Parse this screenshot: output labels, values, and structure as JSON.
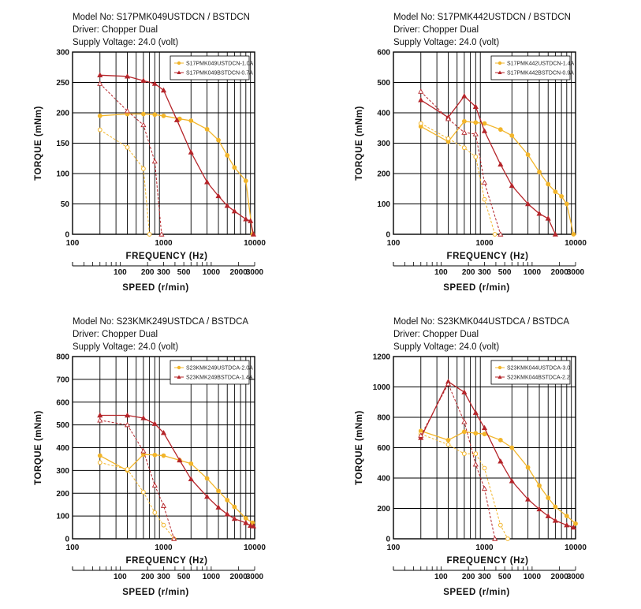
{
  "colors": {
    "yellow": "#f2b52a",
    "red": "#b5252a"
  },
  "chart_data": [
    {
      "type": "line",
      "model": "Model No: S17PMK049USTDCN / BSTDCN",
      "driver": "Driver: Chopper Dual",
      "voltage": "Supply Voltage: 24.0 (volt)",
      "xlabel": "FREQUENCY (Hz)",
      "x2label": "SPEED (r/min)",
      "ylabel": "TORQUE (mNm)",
      "x_scale": "log",
      "xlim": [
        100,
        10000
      ],
      "ylim": [
        0,
        300
      ],
      "yticks": [
        0,
        50,
        100,
        150,
        200,
        250,
        300
      ],
      "xticks": [
        100,
        1000,
        10000
      ],
      "speed_ticks": [
        100,
        200,
        300,
        500,
        1000,
        2000,
        3000
      ],
      "legend_position": "top-right",
      "series": [
        {
          "name": "S17PMK049USTDCN-1.0A",
          "color": "#f2b52a",
          "marker": "circle",
          "x": [
            200,
            400,
            600,
            800,
            1000,
            1500,
            2000,
            3000,
            4000,
            5000,
            6000,
            8000,
            9500
          ],
          "y": [
            195,
            198,
            198,
            197,
            195,
            190,
            187,
            173,
            155,
            130,
            110,
            88,
            0
          ]
        },
        {
          "name": "S17PMK049USTDCN-1.0A (pull-in)",
          "color": "#f2b52a",
          "marker": "circle",
          "dashed": true,
          "x": [
            200,
            400,
            600,
            700
          ],
          "y": [
            172,
            143,
            108,
            0
          ]
        },
        {
          "name": "S17PMK049BSTDCN-0.7A",
          "color": "#b5252a",
          "marker": "triangle",
          "x": [
            200,
            400,
            600,
            800,
            1000,
            1400,
            2000,
            3000,
            4000,
            5000,
            6000,
            8000,
            9000,
            9700
          ],
          "y": [
            262,
            260,
            253,
            248,
            237,
            188,
            135,
            86,
            63,
            47,
            38,
            25,
            22,
            0
          ]
        },
        {
          "name": "S17PMK049BSTDCN-0.7A (pull-in)",
          "color": "#b5252a",
          "marker": "triangle",
          "dashed": true,
          "x": [
            200,
            400,
            600,
            800,
            950
          ],
          "y": [
            248,
            203,
            180,
            120,
            0
          ]
        }
      ]
    },
    {
      "type": "line",
      "model": "Model No: S17PMK442USTDCN / BSTDCN",
      "driver": "Driver: Chopper Dual",
      "voltage": "Supply Voltage: 24.0 (volt)",
      "xlabel": "FREQUENCY (Hz)",
      "x2label": "SPEED (r/min)",
      "ylabel": "TORQUE (mNm)",
      "x_scale": "log",
      "xlim": [
        100,
        10000
      ],
      "ylim": [
        0,
        600
      ],
      "yticks": [
        0,
        100,
        200,
        300,
        400,
        500,
        600
      ],
      "xticks": [
        100,
        1000,
        10000
      ],
      "speed_ticks": [
        100,
        200,
        300,
        500,
        1000,
        2000,
        3000
      ],
      "legend_position": "top-right",
      "series": [
        {
          "name": "S17PMK442USTDCN-1.4A",
          "color": "#f2b52a",
          "marker": "circle",
          "x": [
            200,
            400,
            600,
            800,
            1000,
            1500,
            2000,
            3000,
            4000,
            5000,
            6000,
            7000,
            8000,
            9500
          ],
          "y": [
            355,
            305,
            372,
            368,
            365,
            345,
            325,
            262,
            205,
            165,
            140,
            125,
            100,
            0
          ]
        },
        {
          "name": "S17PMK442USTDCN-1.4A (pull-in)",
          "color": "#f2b52a",
          "marker": "circle",
          "dashed": true,
          "x": [
            200,
            400,
            600,
            800,
            1000,
            1300
          ],
          "y": [
            365,
            315,
            285,
            255,
            115,
            0
          ]
        },
        {
          "name": "S17PMK442BSTDCN-0.9A",
          "color": "#b5252a",
          "marker": "triangle",
          "x": [
            200,
            400,
            600,
            800,
            1000,
            1500,
            2000,
            3000,
            4000,
            5000,
            6000
          ],
          "y": [
            442,
            385,
            455,
            420,
            340,
            230,
            160,
            100,
            68,
            52,
            0
          ]
        },
        {
          "name": "S17PMK442BSTDCN-0.9A (pull-in)",
          "color": "#b5252a",
          "marker": "triangle",
          "dashed": true,
          "x": [
            200,
            400,
            600,
            800,
            1000,
            1500
          ],
          "y": [
            470,
            380,
            335,
            330,
            170,
            0
          ]
        }
      ]
    },
    {
      "type": "line",
      "model": "Model No: S23KMK249USTDCA / BSTDCA",
      "driver": "Driver: Chopper Dual",
      "voltage": "Supply Voltage: 24.0 (volt)",
      "xlabel": "FREQUENCY (Hz)",
      "x2label": "SPEED (r/min)",
      "ylabel": "TORQUE (mNm)",
      "x_scale": "log",
      "xlim": [
        100,
        10000
      ],
      "ylim": [
        0,
        800
      ],
      "yticks": [
        0,
        100,
        200,
        300,
        400,
        500,
        600,
        700,
        800
      ],
      "xticks": [
        100,
        1000,
        10000
      ],
      "speed_ticks": [
        100,
        200,
        300,
        500,
        1000,
        2000,
        3000
      ],
      "legend_position": "top-right",
      "series": [
        {
          "name": "S23KMK249USTDCA-2.0A",
          "color": "#f2b52a",
          "marker": "circle",
          "x": [
            200,
            400,
            600,
            800,
            1000,
            1500,
            2000,
            3000,
            4000,
            5000,
            6000,
            8000,
            9500
          ],
          "y": [
            365,
            300,
            370,
            368,
            365,
            345,
            330,
            265,
            210,
            170,
            140,
            90,
            70
          ]
        },
        {
          "name": "S23KMK249USTDCA-2.0A (pull-in)",
          "color": "#f2b52a",
          "marker": "circle",
          "dashed": true,
          "x": [
            200,
            400,
            600,
            800,
            1000,
            1300
          ],
          "y": [
            335,
            305,
            205,
            115,
            60,
            0
          ]
        },
        {
          "name": "S23KMK249BSTDCA-1.4A",
          "color": "#b5252a",
          "marker": "triangle",
          "x": [
            200,
            400,
            600,
            800,
            1000,
            1500,
            2000,
            3000,
            4000,
            5000,
            6000,
            8000,
            9000,
            9700
          ],
          "y": [
            542,
            542,
            530,
            505,
            465,
            345,
            262,
            185,
            138,
            108,
            88,
            70,
            58,
            55
          ]
        },
        {
          "name": "S23KMK249BSTDCA-1.4A (pull-in)",
          "color": "#b5252a",
          "marker": "triangle",
          "dashed": true,
          "x": [
            200,
            400,
            600,
            800,
            1000,
            1300
          ],
          "y": [
            520,
            500,
            385,
            235,
            145,
            0
          ]
        }
      ]
    },
    {
      "type": "line",
      "model": "Model No: S23KMK044USTDCA / BSTDCA",
      "driver": "Driver: Chopper Dual",
      "voltage": "Supply Voltage: 24.0 (volt)",
      "xlabel": "FREQUENCY (Hz)",
      "x2label": "SPEED (r/min)",
      "ylabel": "TORQUE (mNm)",
      "x_scale": "log",
      "xlim": [
        100,
        10000
      ],
      "ylim": [
        0,
        1200
      ],
      "yticks": [
        0,
        200,
        400,
        600,
        800,
        1000,
        1200
      ],
      "xticks": [
        100,
        1000,
        10000
      ],
      "speed_ticks": [
        100,
        200,
        300,
        500,
        1000,
        2000,
        3000
      ],
      "legend_position": "top-right",
      "series": [
        {
          "name": "S23KMK044USTDCA-3.0",
          "color": "#f2b52a",
          "marker": "circle",
          "x": [
            200,
            400,
            600,
            800,
            1000,
            1500,
            2000,
            3000,
            4000,
            5000,
            6000,
            8000,
            10000
          ],
          "y": [
            710,
            650,
            705,
            695,
            690,
            650,
            600,
            470,
            350,
            270,
            210,
            150,
            100
          ]
        },
        {
          "name": "S23KMK044USTDCA-3.0 (pull-in)",
          "color": "#f2b52a",
          "marker": "circle",
          "dashed": true,
          "x": [
            200,
            400,
            600,
            800,
            1000,
            1500,
            1800
          ],
          "y": [
            690,
            620,
            560,
            560,
            465,
            90,
            0
          ]
        },
        {
          "name": "S23KMK044BSTDCA-2.2",
          "color": "#b5252a",
          "marker": "triangle",
          "x": [
            200,
            400,
            600,
            800,
            1000,
            1500,
            2000,
            3000,
            4000,
            5000,
            6000,
            8000,
            9500
          ],
          "y": [
            665,
            1035,
            965,
            830,
            730,
            510,
            380,
            260,
            195,
            150,
            120,
            90,
            75
          ]
        },
        {
          "name": "S23KMK044BSTDCA-2.2 (pull-in)",
          "color": "#b5252a",
          "marker": "triangle",
          "dashed": true,
          "x": [
            200,
            400,
            600,
            800,
            1000,
            1300
          ],
          "y": [
            680,
            1020,
            770,
            490,
            330,
            0
          ]
        }
      ]
    }
  ]
}
